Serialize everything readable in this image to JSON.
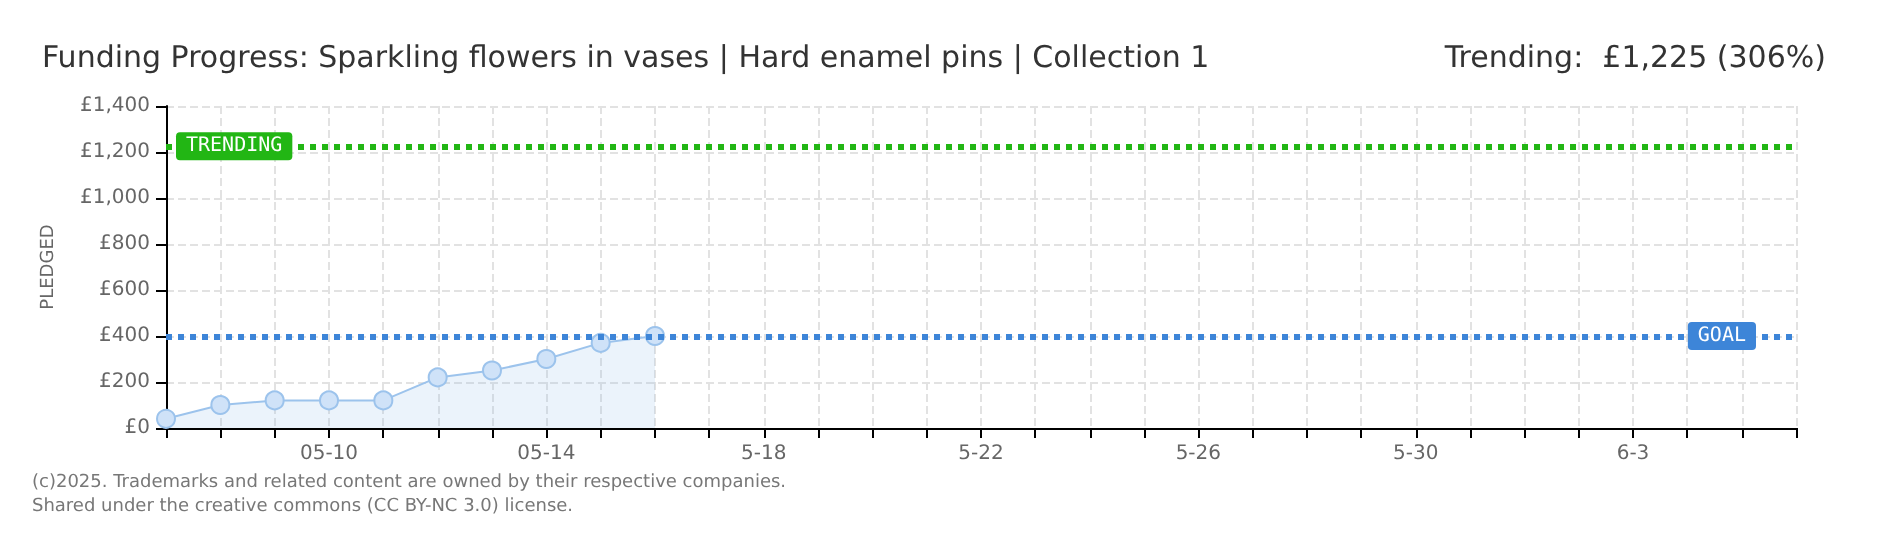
{
  "chart_data": {
    "type": "area",
    "title": "Funding Progress: Sparkling flowers in vases | Hard enamel pins | Collection 1",
    "subtitle": "Trending:  £1,225 (306%)",
    "ylabel": "PLEDGED",
    "categories": [
      null,
      null,
      null,
      "05-10",
      null,
      null,
      null,
      "05-14",
      null,
      null,
      null,
      "5-18",
      null,
      null,
      null,
      "5-22",
      null,
      null,
      null,
      "5-26",
      null,
      null,
      null,
      "5-30",
      null,
      null,
      null,
      "6-3",
      null,
      null,
      null
    ],
    "series": [
      {
        "color": "#9cc3ec",
        "values": [
          40,
          100,
          120,
          120,
          120,
          220,
          250,
          300,
          370,
          400,
          null,
          null,
          null,
          null,
          null,
          null,
          null,
          null,
          null,
          null,
          null,
          null,
          null,
          null,
          null,
          null,
          null,
          null,
          null,
          null,
          null
        ]
      }
    ],
    "ylim": [
      0,
      1400
    ],
    "yticks": [
      {
        "value": 0,
        "label": "£0"
      },
      {
        "value": 200,
        "label": "£200"
      },
      {
        "value": 400,
        "label": "£400"
      },
      {
        "value": 600,
        "label": "£600"
      },
      {
        "value": 800,
        "label": "£800"
      },
      {
        "value": 1000,
        "label": "£1,000"
      },
      {
        "value": 1200,
        "label": "£1,200"
      },
      {
        "value": 1400,
        "label": "£1,400"
      }
    ],
    "ref_lines": [
      {
        "axis": "y",
        "value": 1225,
        "label": "TRENDING",
        "color": "#22b614",
        "line_style": "dotted"
      },
      {
        "axis": "y",
        "value": 400,
        "label": "GOAL",
        "color": "#3d85d8",
        "line_style": "dotted"
      }
    ],
    "annotations": [
      "(c)2025. Trademarks and related content are owned by their respective companies.",
      "Shared under the creative commons (CC BY-NC 3.0) license."
    ],
    "grid": true,
    "marker": "circle",
    "line_style": "solid"
  }
}
